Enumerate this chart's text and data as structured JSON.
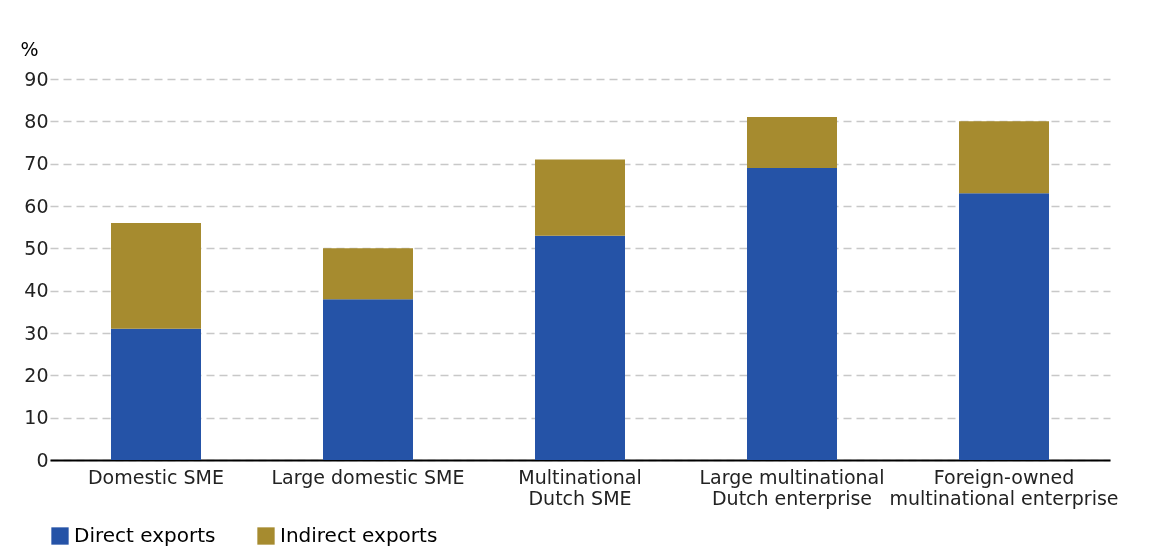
{
  "chart_data": {
    "type": "bar",
    "stacked": true,
    "ylabel": "%",
    "categories": [
      "Domestic SME",
      "Large domestic SME",
      "Multinational\nDutch SME",
      "Large multinational\nDutch enterprise",
      "Foreign-owned\nmultinational enterprise"
    ],
    "series": [
      {
        "name": "Direct exports",
        "color": "#2553a7",
        "values": [
          31,
          38,
          53,
          69,
          63
        ]
      },
      {
        "name": "Indirect exports",
        "color": "#a68b2f",
        "values": [
          25,
          12,
          18,
          12,
          17
        ]
      }
    ],
    "ylim": [
      0,
      90
    ],
    "yticks": [
      0,
      10,
      20,
      30,
      40,
      50,
      60,
      70,
      80,
      90
    ],
    "grid": "y",
    "legend": "bottom"
  }
}
